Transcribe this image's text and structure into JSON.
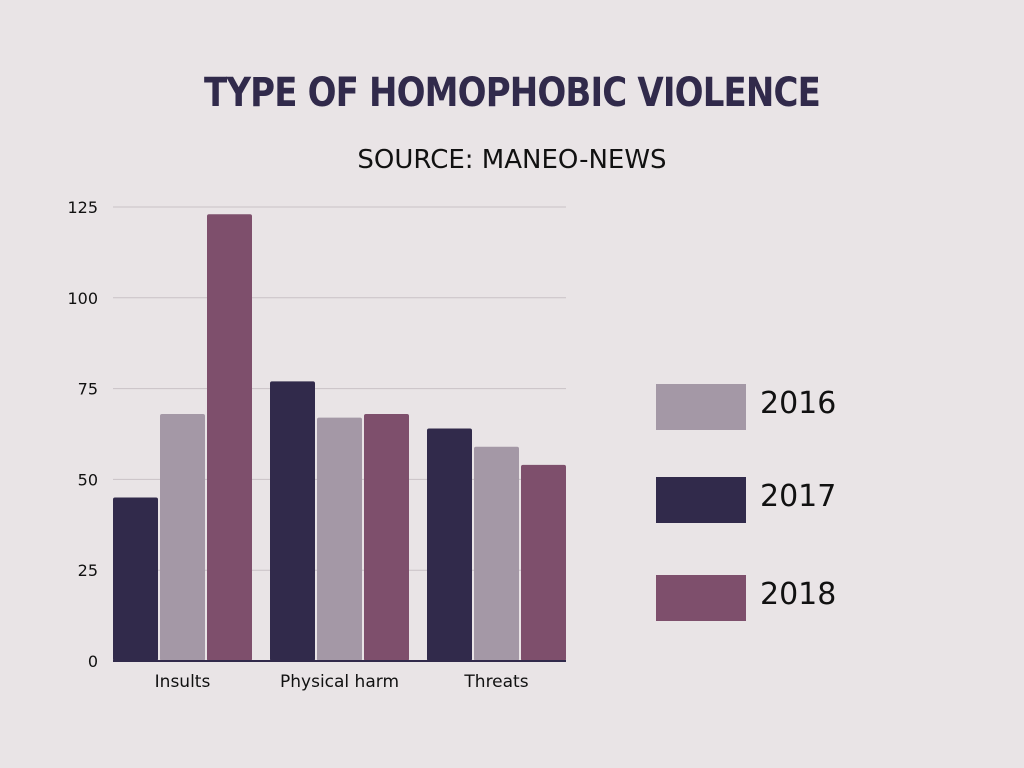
{
  "title": "TYPE OF HOMOPHOBIC VIOLENCE",
  "subtitle": "SOURCE: MANEO-NEWS",
  "chart_data": {
    "type": "bar",
    "title": "TYPE OF HOMOPHOBIC VIOLENCE",
    "subtitle": "SOURCE: MANEO-NEWS",
    "xlabel": "",
    "ylabel": "",
    "categories": [
      "Insults",
      "Physical harm",
      "Threats"
    ],
    "series": [
      {
        "name": "2017",
        "color": "#312a4b",
        "values": [
          45,
          77,
          64
        ]
      },
      {
        "name": "2016",
        "color": "#a498a6",
        "values": [
          68,
          67,
          59
        ]
      },
      {
        "name": "2018",
        "color": "#7e4f6c",
        "values": [
          123,
          68,
          54
        ]
      }
    ],
    "yticks": [
      0,
      25,
      50,
      75,
      100,
      125
    ],
    "ylim": [
      0,
      125
    ],
    "grid": true,
    "legend_position": "right",
    "legend": [
      {
        "name": "2016",
        "color": "#a498a6"
      },
      {
        "name": "2017",
        "color": "#312a4b"
      },
      {
        "name": "2018",
        "color": "#7e4f6c"
      }
    ]
  }
}
